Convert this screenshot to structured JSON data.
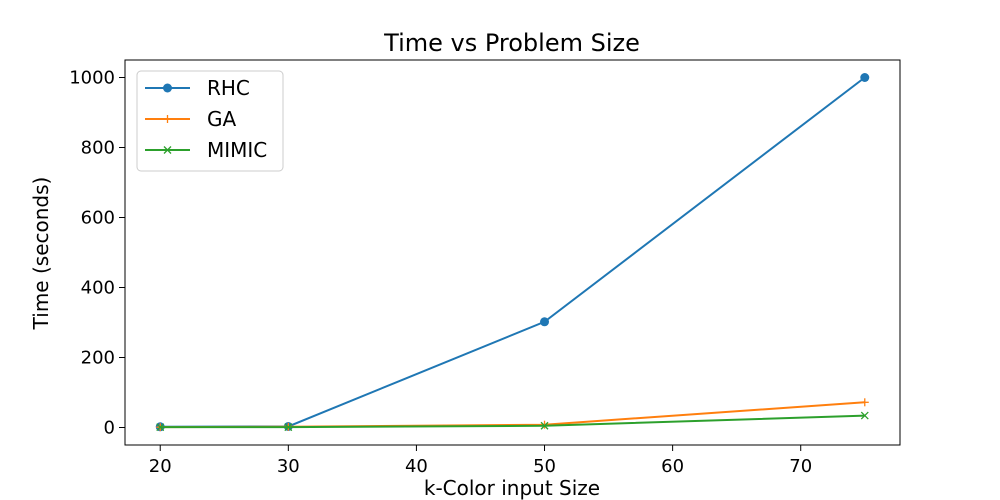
{
  "chart_data": {
    "type": "line",
    "title": "Time vs Problem Size",
    "xlabel": "k-Color input Size",
    "ylabel": "Time (seconds)",
    "x": [
      20,
      30,
      50,
      75
    ],
    "xlim": [
      17.25,
      77.75
    ],
    "ylim": [
      -50,
      1050
    ],
    "xticks": [
      20,
      30,
      40,
      50,
      60,
      70
    ],
    "yticks": [
      0,
      200,
      400,
      600,
      800,
      1000
    ],
    "grid": false,
    "legend_position": "top-left",
    "series": [
      {
        "name": "RHC",
        "color": "#1f77b4",
        "marker": "circle",
        "values": [
          2,
          3,
          302,
          1000
        ]
      },
      {
        "name": "GA",
        "color": "#ff7f0e",
        "marker": "plus",
        "values": [
          1,
          2,
          8,
          72
        ]
      },
      {
        "name": "MIMIC",
        "color": "#2ca02c",
        "marker": "x",
        "values": [
          1,
          1,
          5,
          34
        ]
      }
    ]
  }
}
